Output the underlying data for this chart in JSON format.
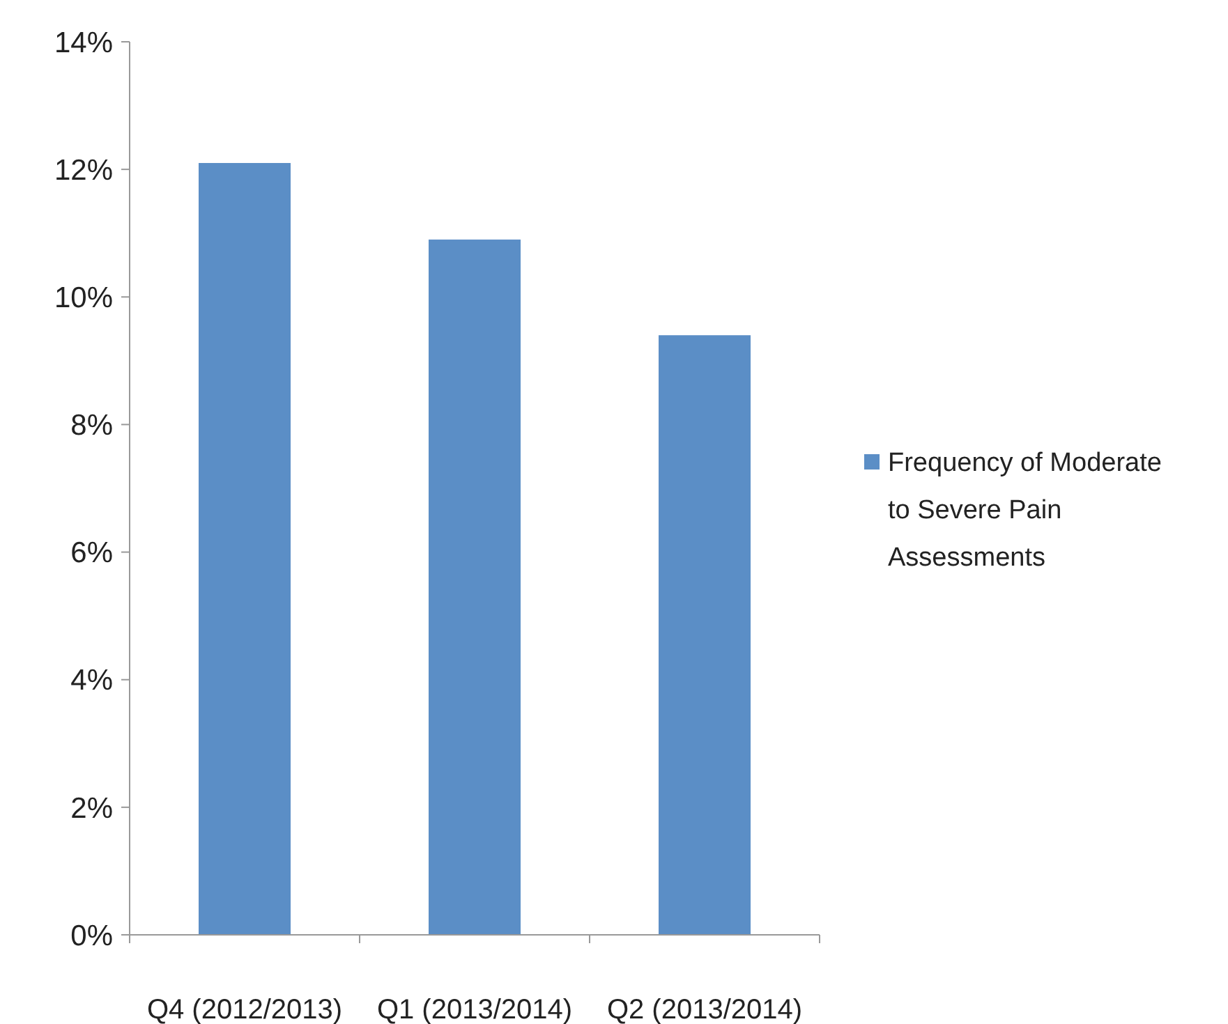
{
  "chart_data": {
    "type": "bar",
    "categories": [
      "Q4 (2012/2013)",
      "Q1 (2013/2014)",
      "Q2 (2013/2014)"
    ],
    "series": [
      {
        "name": "Frequency of Moderate to Severe Pain Assessments",
        "color": "#5b8ec6",
        "values": [
          12.1,
          10.9,
          9.4
        ]
      }
    ],
    "ylim": [
      0,
      14
    ],
    "yticks": [
      {
        "value": 0,
        "label": "0%"
      },
      {
        "value": 2,
        "label": "2%"
      },
      {
        "value": 4,
        "label": "4%"
      },
      {
        "value": 6,
        "label": "6%"
      },
      {
        "value": 8,
        "label": "8%"
      },
      {
        "value": 10,
        "label": "10%"
      },
      {
        "value": 12,
        "label": "12%"
      },
      {
        "value": 14,
        "label": "14%"
      }
    ],
    "grid": false,
    "legend": "right"
  }
}
